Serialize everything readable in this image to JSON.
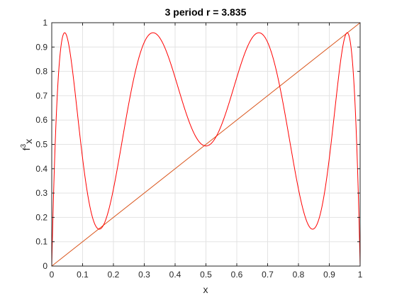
{
  "chart_data": {
    "type": "line",
    "title": "3 period r = 3.835",
    "xlabel": "x",
    "ylabel_base": "f",
    "ylabel_sup": "3",
    "ylabel_sub": "x",
    "xlim": [
      0,
      1
    ],
    "ylim": [
      0,
      1
    ],
    "xticks": [
      "0",
      "0.1",
      "0.2",
      "0.3",
      "0.4",
      "0.5",
      "0.6",
      "0.7",
      "0.8",
      "0.9",
      "1"
    ],
    "yticks": [
      "0",
      "0.1",
      "0.2",
      "0.3",
      "0.4",
      "0.5",
      "0.6",
      "0.7",
      "0.8",
      "0.9",
      "1"
    ],
    "grid": true,
    "r": 3.835,
    "series": [
      {
        "kind": "third-iterate of logistic map",
        "color": "#ff0000"
      },
      {
        "kind": "identity line y = x",
        "color": "#d95319"
      }
    ]
  }
}
